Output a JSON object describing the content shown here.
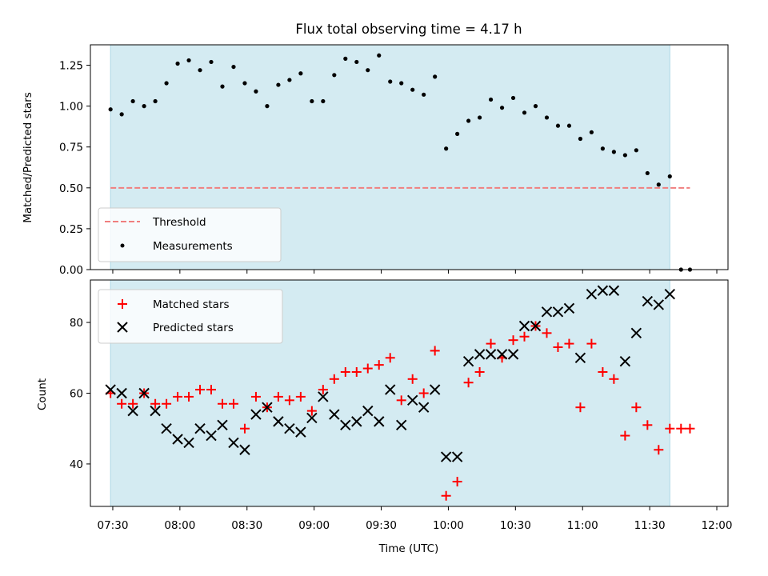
{
  "chart_data": [
    {
      "type": "scatter",
      "title": "Flux total observing time = 4.17 h",
      "xlabel": "",
      "ylabel": "Matched/Predicted stars",
      "xlim_minutes": [
        440,
        725
      ],
      "ylim": [
        0,
        1.375
      ],
      "yticks": [
        "0.00",
        "0.25",
        "0.50",
        "0.75",
        "1.00",
        "1.25"
      ],
      "ytick_values": [
        0,
        0.25,
        0.5,
        0.75,
        1.0,
        1.25
      ],
      "grid": false,
      "legend_position": "lower-left",
      "shaded_span": {
        "start": "07:29",
        "end": "11:39",
        "color": "#add8e6"
      },
      "colors": {
        "threshold": "#f07f7f",
        "measurements": "#000000",
        "shade": "#add8e6"
      },
      "series": [
        {
          "name": "Threshold",
          "style": "dashed-line",
          "x": [
            "07:29",
            "11:48"
          ],
          "y": [
            0.5,
            0.5
          ]
        },
        {
          "name": "Measurements",
          "style": "dot",
          "x": [
            "07:29",
            "07:34",
            "07:39",
            "07:44",
            "07:49",
            "07:54",
            "07:59",
            "08:04",
            "08:09",
            "08:14",
            "08:19",
            "08:24",
            "08:29",
            "08:34",
            "08:39",
            "08:44",
            "08:49",
            "08:54",
            "08:59",
            "09:04",
            "09:09",
            "09:14",
            "09:19",
            "09:24",
            "09:29",
            "09:34",
            "09:39",
            "09:44",
            "09:49",
            "09:54",
            "09:59",
            "10:04",
            "10:09",
            "10:14",
            "10:19",
            "10:24",
            "10:29",
            "10:34",
            "10:39",
            "10:44",
            "10:49",
            "10:54",
            "10:59",
            "11:04",
            "11:09",
            "11:14",
            "11:19",
            "11:24",
            "11:29",
            "11:34",
            "11:39",
            "11:44",
            "11:48"
          ],
          "y": [
            0.98,
            0.95,
            1.03,
            1.0,
            1.03,
            1.14,
            1.26,
            1.28,
            1.22,
            1.27,
            1.12,
            1.24,
            1.14,
            1.09,
            1.0,
            1.13,
            1.16,
            1.2,
            1.03,
            1.03,
            1.19,
            1.29,
            1.27,
            1.22,
            1.31,
            1.15,
            1.14,
            1.1,
            1.07,
            1.18,
            0.74,
            0.83,
            0.91,
            0.93,
            1.04,
            0.99,
            1.05,
            0.96,
            1.0,
            0.93,
            0.88,
            0.88,
            0.8,
            0.84,
            0.74,
            0.72,
            0.7,
            0.73,
            0.59,
            0.52,
            0.57,
            0.0,
            0.0
          ]
        }
      ]
    },
    {
      "type": "scatter",
      "title": "",
      "xlabel": "Time (UTC)",
      "ylabel": "Count",
      "xlim_minutes": [
        440,
        725
      ],
      "ylim": [
        28,
        92
      ],
      "yticks": [
        "40",
        "60",
        "80"
      ],
      "ytick_values": [
        40,
        60,
        80
      ],
      "xticks": [
        "07:30",
        "08:00",
        "08:30",
        "09:00",
        "09:30",
        "10:00",
        "10:30",
        "11:00",
        "11:30",
        "12:00"
      ],
      "grid": false,
      "legend_position": "top-left",
      "shaded_span": {
        "start": "07:29",
        "end": "11:39",
        "color": "#add8e6"
      },
      "colors": {
        "matched": "#ff0000",
        "predicted": "#000000",
        "shade": "#add8e6"
      },
      "series": [
        {
          "name": "Matched stars",
          "marker": "plus",
          "x": [
            "07:29",
            "07:34",
            "07:39",
            "07:44",
            "07:49",
            "07:54",
            "07:59",
            "08:04",
            "08:09",
            "08:14",
            "08:19",
            "08:24",
            "08:29",
            "08:34",
            "08:39",
            "08:44",
            "08:49",
            "08:54",
            "08:59",
            "09:04",
            "09:09",
            "09:14",
            "09:19",
            "09:24",
            "09:29",
            "09:34",
            "09:39",
            "09:44",
            "09:49",
            "09:54",
            "09:59",
            "10:04",
            "10:09",
            "10:14",
            "10:19",
            "10:24",
            "10:29",
            "10:34",
            "10:39",
            "10:44",
            "10:49",
            "10:54",
            "10:59",
            "11:04",
            "11:09",
            "11:14",
            "11:19",
            "11:24",
            "11:29",
            "11:34",
            "11:39",
            "11:44",
            "11:48"
          ],
          "y": [
            60,
            57,
            57,
            60,
            57,
            57,
            59,
            59,
            61,
            61,
            57,
            57,
            50,
            59,
            56,
            59,
            58,
            59,
            55,
            61,
            64,
            66,
            66,
            67,
            68,
            70,
            58,
            64,
            60,
            72,
            31,
            35,
            63,
            66,
            74,
            70,
            75,
            76,
            79,
            77,
            73,
            74,
            56,
            74,
            66,
            64,
            48,
            56,
            51,
            44,
            50,
            50,
            50
          ]
        },
        {
          "name": "Predicted stars",
          "marker": "x",
          "x": [
            "07:29",
            "07:34",
            "07:39",
            "07:44",
            "07:49",
            "07:54",
            "07:59",
            "08:04",
            "08:09",
            "08:14",
            "08:19",
            "08:24",
            "08:29",
            "08:34",
            "08:39",
            "08:44",
            "08:49",
            "08:54",
            "08:59",
            "09:04",
            "09:09",
            "09:14",
            "09:19",
            "09:24",
            "09:29",
            "09:34",
            "09:39",
            "09:44",
            "09:49",
            "09:54",
            "09:59",
            "10:04",
            "10:09",
            "10:14",
            "10:19",
            "10:24",
            "10:29",
            "10:34",
            "10:39",
            "10:44",
            "10:49",
            "10:54",
            "10:59",
            "11:04",
            "11:09",
            "11:14",
            "11:19",
            "11:24",
            "11:29",
            "11:34",
            "11:39"
          ],
          "y": [
            61,
            60,
            55,
            60,
            55,
            50,
            47,
            46,
            50,
            48,
            51,
            46,
            44,
            54,
            56,
            52,
            50,
            49,
            53,
            59,
            54,
            51,
            52,
            55,
            52,
            61,
            51,
            58,
            56,
            61,
            42,
            42,
            69,
            71,
            71,
            71,
            71,
            79,
            79,
            83,
            83,
            84,
            70,
            88,
            89,
            89,
            69,
            77,
            86,
            85,
            88
          ]
        }
      ]
    }
  ]
}
